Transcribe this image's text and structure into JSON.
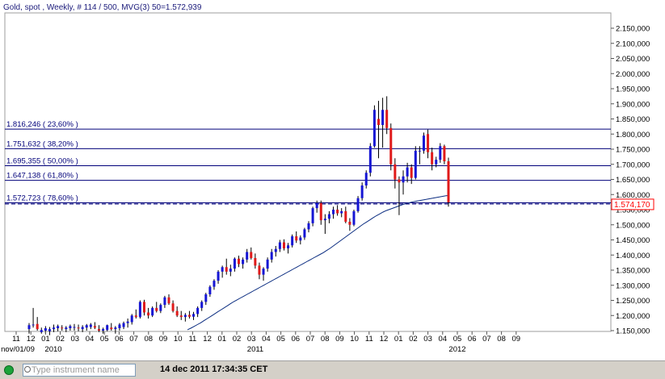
{
  "chart_header": "Gold, spot , Weekly, # 114 / 500, MVG(3) 50=1.572,939",
  "price_tag": "1.574,170",
  "status": {
    "placeholder": "Type instrument name",
    "timestamp": "14 dec 2011 17:34:35 CET"
  },
  "colors": {
    "up": "#1515d4",
    "down": "#e01a1a",
    "grid": "#00007a",
    "ma": "#0a2c80",
    "tag": "#ff0000"
  },
  "chart_data": {
    "type": "candlestick",
    "title": "Gold, spot , Weekly, # 114 / 500, MVG(3) 50=1.572,939",
    "ylim": [
      1150000,
      2200000
    ],
    "y_ticks": [
      {
        "v": 2150000,
        "l": "2.150,000"
      },
      {
        "v": 2100000,
        "l": "2.100,000"
      },
      {
        "v": 2050000,
        "l": "2.050,000"
      },
      {
        "v": 2000000,
        "l": "2.000,000"
      },
      {
        "v": 1950000,
        "l": "1.950,000"
      },
      {
        "v": 1900000,
        "l": "1.900,000"
      },
      {
        "v": 1850000,
        "l": "1.850,000"
      },
      {
        "v": 1800000,
        "l": "1.800,000"
      },
      {
        "v": 1750000,
        "l": "1.750,000"
      },
      {
        "v": 1700000,
        "l": "1.700,000"
      },
      {
        "v": 1650000,
        "l": "1.650,000"
      },
      {
        "v": 1600000,
        "l": "1.600,000"
      },
      {
        "v": 1550000,
        "l": "1.550,000"
      },
      {
        "v": 1500000,
        "l": "1.500,000"
      },
      {
        "v": 1450000,
        "l": "1.450,000"
      },
      {
        "v": 1400000,
        "l": "1.400,000"
      },
      {
        "v": 1350000,
        "l": "1.350,000"
      },
      {
        "v": 1300000,
        "l": "1.300,000"
      },
      {
        "v": 1250000,
        "l": "1.250,000"
      },
      {
        "v": 1200000,
        "l": "1.200,000"
      },
      {
        "v": 1150000,
        "l": "1.150,000"
      }
    ],
    "x_month_labels": [
      "11",
      "12",
      "01",
      "02",
      "03",
      "04",
      "05",
      "06",
      "07",
      "08",
      "09",
      "10",
      "11",
      "12",
      "01",
      "02",
      "03",
      "04",
      "05",
      "06",
      "07",
      "08",
      "09",
      "10",
      "11",
      "12",
      "01",
      "02",
      "03",
      "04",
      "05",
      "06",
      "07",
      "08",
      "09"
    ],
    "x_year_labels": [
      "nov/01/09",
      "2010",
      "2011",
      "2012"
    ],
    "fib_levels": [
      {
        "value": 1816246,
        "label": "1.816,246 ( 23,60% )"
      },
      {
        "value": 1751632,
        "label": "1.751,632 ( 38,20% )"
      },
      {
        "value": 1695355,
        "label": "1.695,355 ( 50,00% )"
      },
      {
        "value": 1647138,
        "label": "1.647,138 ( 61,80% )"
      },
      {
        "value": 1572723,
        "label": "1.572,723 ( 78,60% )"
      }
    ],
    "current_price": 1574170,
    "candles": [
      {
        "o": 1155000,
        "h": 1175000,
        "l": 1140000,
        "c": 1168000
      },
      {
        "o": 1168000,
        "h": 1225000,
        "l": 1160000,
        "c": 1170000
      },
      {
        "o": 1172000,
        "h": 1195000,
        "l": 1150000,
        "c": 1155000
      },
      {
        "o": 1145000,
        "h": 1160000,
        "l": 1140000,
        "c": 1152000
      },
      {
        "o": 1150000,
        "h": 1165000,
        "l": 1140000,
        "c": 1158000
      },
      {
        "o": 1148000,
        "h": 1162000,
        "l": 1135000,
        "c": 1155000
      },
      {
        "o": 1155000,
        "h": 1170000,
        "l": 1145000,
        "c": 1160000
      },
      {
        "o": 1158000,
        "h": 1170000,
        "l": 1148000,
        "c": 1165000
      },
      {
        "o": 1160000,
        "h": 1168000,
        "l": 1150000,
        "c": 1158000
      },
      {
        "o": 1155000,
        "h": 1165000,
        "l": 1145000,
        "c": 1160000
      },
      {
        "o": 1158000,
        "h": 1170000,
        "l": 1150000,
        "c": 1165000
      },
      {
        "o": 1160000,
        "h": 1172000,
        "l": 1150000,
        "c": 1162000
      },
      {
        "o": 1160000,
        "h": 1170000,
        "l": 1148000,
        "c": 1158000
      },
      {
        "o": 1155000,
        "h": 1168000,
        "l": 1145000,
        "c": 1162000
      },
      {
        "o": 1160000,
        "h": 1172000,
        "l": 1150000,
        "c": 1168000
      },
      {
        "o": 1162000,
        "h": 1175000,
        "l": 1155000,
        "c": 1170000
      },
      {
        "o": 1165000,
        "h": 1178000,
        "l": 1155000,
        "c": 1160000
      },
      {
        "o": 1155000,
        "h": 1168000,
        "l": 1145000,
        "c": 1150000
      },
      {
        "o": 1150000,
        "h": 1160000,
        "l": 1140000,
        "c": 1155000
      },
      {
        "o": 1152000,
        "h": 1170000,
        "l": 1148000,
        "c": 1168000
      },
      {
        "o": 1160000,
        "h": 1175000,
        "l": 1150000,
        "c": 1155000
      },
      {
        "o": 1155000,
        "h": 1165000,
        "l": 1140000,
        "c": 1160000
      },
      {
        "o": 1158000,
        "h": 1175000,
        "l": 1150000,
        "c": 1170000
      },
      {
        "o": 1162000,
        "h": 1180000,
        "l": 1155000,
        "c": 1175000
      },
      {
        "o": 1175000,
        "h": 1190000,
        "l": 1160000,
        "c": 1180000
      },
      {
        "o": 1178000,
        "h": 1205000,
        "l": 1170000,
        "c": 1200000
      },
      {
        "o": 1200000,
        "h": 1220000,
        "l": 1190000,
        "c": 1195000
      },
      {
        "o": 1195000,
        "h": 1250000,
        "l": 1190000,
        "c": 1245000
      },
      {
        "o": 1245000,
        "h": 1252000,
        "l": 1200000,
        "c": 1210000
      },
      {
        "o": 1210000,
        "h": 1225000,
        "l": 1190000,
        "c": 1200000
      },
      {
        "o": 1200000,
        "h": 1230000,
        "l": 1195000,
        "c": 1225000
      },
      {
        "o": 1225000,
        "h": 1245000,
        "l": 1210000,
        "c": 1215000
      },
      {
        "o": 1215000,
        "h": 1240000,
        "l": 1208000,
        "c": 1235000
      },
      {
        "o": 1235000,
        "h": 1265000,
        "l": 1225000,
        "c": 1260000
      },
      {
        "o": 1260000,
        "h": 1270000,
        "l": 1235000,
        "c": 1240000
      },
      {
        "o": 1240000,
        "h": 1250000,
        "l": 1210000,
        "c": 1215000
      },
      {
        "o": 1215000,
        "h": 1230000,
        "l": 1195000,
        "c": 1200000
      },
      {
        "o": 1200000,
        "h": 1215000,
        "l": 1185000,
        "c": 1195000
      },
      {
        "o": 1195000,
        "h": 1208000,
        "l": 1180000,
        "c": 1202000
      },
      {
        "o": 1202000,
        "h": 1215000,
        "l": 1190000,
        "c": 1196000
      },
      {
        "o": 1196000,
        "h": 1212000,
        "l": 1185000,
        "c": 1205000
      },
      {
        "o": 1205000,
        "h": 1230000,
        "l": 1195000,
        "c": 1225000
      },
      {
        "o": 1225000,
        "h": 1250000,
        "l": 1215000,
        "c": 1245000
      },
      {
        "o": 1245000,
        "h": 1275000,
        "l": 1235000,
        "c": 1270000
      },
      {
        "o": 1270000,
        "h": 1300000,
        "l": 1262000,
        "c": 1295000
      },
      {
        "o": 1295000,
        "h": 1320000,
        "l": 1285000,
        "c": 1315000
      },
      {
        "o": 1315000,
        "h": 1350000,
        "l": 1305000,
        "c": 1345000
      },
      {
        "o": 1345000,
        "h": 1365000,
        "l": 1325000,
        "c": 1360000
      },
      {
        "o": 1360000,
        "h": 1388000,
        "l": 1335000,
        "c": 1345000
      },
      {
        "o": 1345000,
        "h": 1368000,
        "l": 1330000,
        "c": 1355000
      },
      {
        "o": 1355000,
        "h": 1392000,
        "l": 1345000,
        "c": 1388000
      },
      {
        "o": 1388000,
        "h": 1398000,
        "l": 1360000,
        "c": 1370000
      },
      {
        "o": 1370000,
        "h": 1392000,
        "l": 1355000,
        "c": 1385000
      },
      {
        "o": 1385000,
        "h": 1420000,
        "l": 1375000,
        "c": 1410000
      },
      {
        "o": 1410000,
        "h": 1425000,
        "l": 1385000,
        "c": 1390000
      },
      {
        "o": 1390000,
        "h": 1405000,
        "l": 1355000,
        "c": 1365000
      },
      {
        "o": 1365000,
        "h": 1375000,
        "l": 1320000,
        "c": 1335000
      },
      {
        "o": 1335000,
        "h": 1360000,
        "l": 1315000,
        "c": 1355000
      },
      {
        "o": 1355000,
        "h": 1392000,
        "l": 1345000,
        "c": 1385000
      },
      {
        "o": 1385000,
        "h": 1420000,
        "l": 1375000,
        "c": 1410000
      },
      {
        "o": 1410000,
        "h": 1430000,
        "l": 1395000,
        "c": 1420000
      },
      {
        "o": 1420000,
        "h": 1450000,
        "l": 1410000,
        "c": 1442000
      },
      {
        "o": 1442000,
        "h": 1452000,
        "l": 1415000,
        "c": 1422000
      },
      {
        "o": 1422000,
        "h": 1440000,
        "l": 1405000,
        "c": 1432000
      },
      {
        "o": 1432000,
        "h": 1468000,
        "l": 1425000,
        "c": 1462000
      },
      {
        "o": 1462000,
        "h": 1478000,
        "l": 1440000,
        "c": 1448000
      },
      {
        "o": 1448000,
        "h": 1465000,
        "l": 1435000,
        "c": 1458000
      },
      {
        "o": 1458000,
        "h": 1490000,
        "l": 1450000,
        "c": 1485000
      },
      {
        "o": 1485000,
        "h": 1512000,
        "l": 1475000,
        "c": 1505000
      },
      {
        "o": 1505000,
        "h": 1560000,
        "l": 1495000,
        "c": 1555000
      },
      {
        "o": 1555000,
        "h": 1580000,
        "l": 1540000,
        "c": 1572000
      },
      {
        "o": 1572000,
        "h": 1580000,
        "l": 1500000,
        "c": 1515000
      },
      {
        "o": 1515000,
        "h": 1535000,
        "l": 1470000,
        "c": 1520000
      },
      {
        "o": 1520000,
        "h": 1545000,
        "l": 1505000,
        "c": 1535000
      },
      {
        "o": 1535000,
        "h": 1560000,
        "l": 1520000,
        "c": 1550000
      },
      {
        "o": 1550000,
        "h": 1565000,
        "l": 1530000,
        "c": 1538000
      },
      {
        "o": 1538000,
        "h": 1555000,
        "l": 1525000,
        "c": 1545000
      },
      {
        "o": 1545000,
        "h": 1560000,
        "l": 1505000,
        "c": 1510000
      },
      {
        "o": 1510000,
        "h": 1522000,
        "l": 1480000,
        "c": 1500000
      },
      {
        "o": 1500000,
        "h": 1550000,
        "l": 1495000,
        "c": 1545000
      },
      {
        "o": 1545000,
        "h": 1595000,
        "l": 1540000,
        "c": 1588000
      },
      {
        "o": 1588000,
        "h": 1640000,
        "l": 1580000,
        "c": 1630000
      },
      {
        "o": 1630000,
        "h": 1680000,
        "l": 1620000,
        "c": 1672000
      },
      {
        "o": 1672000,
        "h": 1770000,
        "l": 1660000,
        "c": 1760000
      },
      {
        "o": 1760000,
        "h": 1895000,
        "l": 1755000,
        "c": 1880000
      },
      {
        "o": 1850000,
        "h": 1910000,
        "l": 1720000,
        "c": 1830000
      },
      {
        "o": 1830000,
        "h": 1920000,
        "l": 1755000,
        "c": 1880000
      },
      {
        "o": 1880000,
        "h": 1925000,
        "l": 1800000,
        "c": 1820000
      },
      {
        "o": 1820000,
        "h": 1835000,
        "l": 1680000,
        "c": 1700000
      },
      {
        "o": 1700000,
        "h": 1720000,
        "l": 1620000,
        "c": 1650000
      },
      {
        "o": 1650000,
        "h": 1660000,
        "l": 1532000,
        "c": 1640000
      },
      {
        "o": 1640000,
        "h": 1680000,
        "l": 1600000,
        "c": 1660000
      },
      {
        "o": 1660000,
        "h": 1705000,
        "l": 1640000,
        "c": 1690000
      },
      {
        "o": 1690000,
        "h": 1700000,
        "l": 1635000,
        "c": 1655000
      },
      {
        "o": 1655000,
        "h": 1760000,
        "l": 1650000,
        "c": 1745000
      },
      {
        "o": 1745000,
        "h": 1760000,
        "l": 1700000,
        "c": 1745000
      },
      {
        "o": 1745000,
        "h": 1805000,
        "l": 1735000,
        "c": 1795000
      },
      {
        "o": 1800000,
        "h": 1815000,
        "l": 1720000,
        "c": 1740000
      },
      {
        "o": 1740000,
        "h": 1755000,
        "l": 1680000,
        "c": 1700000
      },
      {
        "o": 1700000,
        "h": 1725000,
        "l": 1690000,
        "c": 1715000
      },
      {
        "o": 1715000,
        "h": 1770000,
        "l": 1705000,
        "c": 1760000
      },
      {
        "o": 1760000,
        "h": 1765000,
        "l": 1700000,
        "c": 1710000
      },
      {
        "o": 1710000,
        "h": 1722000,
        "l": 1560000,
        "c": 1574170
      }
    ],
    "ma_series": [
      1153000,
      1158000,
      1164000,
      1170000,
      1176000,
      1183000,
      1190000,
      1197000,
      1204000,
      1211000,
      1218000,
      1225000,
      1232000,
      1239000,
      1246000,
      1252000,
      1258000,
      1264000,
      1270000,
      1276000,
      1282000,
      1288000,
      1294000,
      1300000,
      1306000,
      1312000,
      1318000,
      1324000,
      1330000,
      1336000,
      1342000,
      1348000,
      1354000,
      1360000,
      1366000,
      1372000,
      1378000,
      1384000,
      1390000,
      1396000,
      1402000,
      1408000,
      1415000,
      1422000,
      1430000,
      1438000,
      1446000,
      1454000,
      1462000,
      1470000,
      1478000,
      1486000,
      1494000,
      1502000,
      1509000,
      1516000,
      1523000,
      1530000,
      1536000,
      1542000,
      1547000,
      1551000,
      1555000,
      1559000,
      1563000,
      1567000,
      1570000,
      1573000,
      1576000,
      1578000,
      1580000,
      1582000,
      1584000,
      1586000,
      1588000,
      1590000,
      1592000,
      1594000,
      1596000,
      1597000
    ]
  }
}
